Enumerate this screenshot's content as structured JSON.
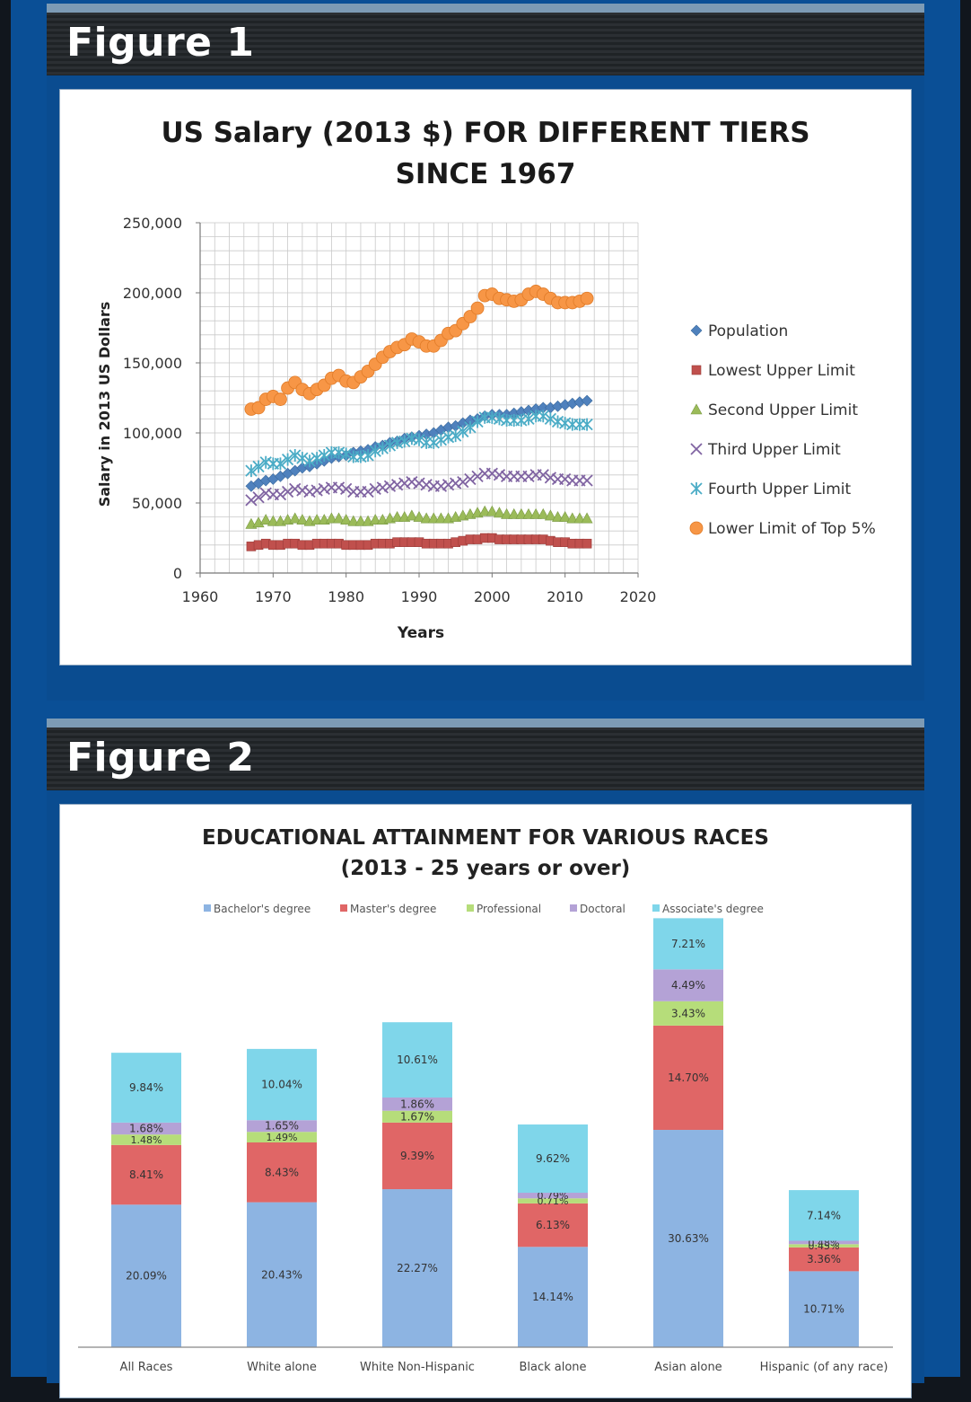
{
  "panels": [
    {
      "title": "Figure 1"
    },
    {
      "title": "Figure 2"
    }
  ],
  "chart_data": [
    {
      "type": "scatter",
      "title": "US Salary (2013 $) FOR DIFFERENT TIERS",
      "subtitle": "SINCE 1967",
      "xlabel": "Years",
      "ylabel": "Salary in 2013 US Dollars",
      "xlim": [
        1960,
        2020
      ],
      "ylim": [
        0,
        250000
      ],
      "xticks": [
        1960,
        1970,
        1980,
        1990,
        2000,
        2010,
        2020
      ],
      "yticks": [
        0,
        50000,
        100000,
        150000,
        200000,
        250000
      ],
      "xtick_labels": [
        "1960",
        "1970",
        "1980",
        "1990",
        "2000",
        "2010",
        "2020"
      ],
      "ytick_labels": [
        "0",
        "50,000",
        "100,000",
        "150,000",
        "200,000",
        "250,000"
      ],
      "grid": true,
      "legend_position": "right",
      "x": [
        1967,
        1968,
        1969,
        1970,
        1971,
        1972,
        1973,
        1974,
        1975,
        1976,
        1977,
        1978,
        1979,
        1980,
        1981,
        1982,
        1983,
        1984,
        1985,
        1986,
        1987,
        1988,
        1989,
        1990,
        1991,
        1992,
        1993,
        1994,
        1995,
        1996,
        1997,
        1998,
        1999,
        2000,
        2001,
        2002,
        2003,
        2004,
        2005,
        2006,
        2007,
        2008,
        2009,
        2010,
        2011,
        2012,
        2013
      ],
      "series": [
        {
          "name": "Population",
          "marker": "diamond",
          "color": "#4f81bd",
          "values": [
            62000,
            64000,
            66000,
            67000,
            69000,
            71000,
            73000,
            75000,
            76000,
            78000,
            80000,
            82000,
            83000,
            84000,
            86000,
            87000,
            88000,
            90000,
            91000,
            93000,
            94000,
            96000,
            97000,
            98000,
            99000,
            100000,
            102000,
            104000,
            105000,
            107000,
            109000,
            110000,
            112000,
            113000,
            113000,
            113000,
            114000,
            115000,
            116000,
            117000,
            118000,
            118000,
            119000,
            120000,
            121000,
            122000,
            123000
          ]
        },
        {
          "name": "Lowest Upper Limit",
          "marker": "square",
          "color": "#c0504d",
          "values": [
            19000,
            20000,
            21000,
            20000,
            20000,
            21000,
            21000,
            20000,
            20000,
            21000,
            21000,
            21000,
            21000,
            20000,
            20000,
            20000,
            20000,
            21000,
            21000,
            21000,
            22000,
            22000,
            22000,
            22000,
            21000,
            21000,
            21000,
            21000,
            22000,
            23000,
            24000,
            24000,
            25000,
            25000,
            24000,
            24000,
            24000,
            24000,
            24000,
            24000,
            24000,
            23000,
            22000,
            22000,
            21000,
            21000,
            21000
          ]
        },
        {
          "name": "Second Upper Limit",
          "marker": "triangle",
          "color": "#9bbb59",
          "values": [
            35000,
            36000,
            38000,
            37000,
            37000,
            38000,
            39000,
            38000,
            37000,
            38000,
            38000,
            39000,
            39000,
            38000,
            37000,
            37000,
            37000,
            38000,
            38000,
            39000,
            40000,
            40000,
            41000,
            40000,
            39000,
            39000,
            39000,
            39000,
            40000,
            41000,
            42000,
            43000,
            44000,
            44000,
            43000,
            42000,
            42000,
            42000,
            42000,
            42000,
            42000,
            41000,
            40000,
            40000,
            39000,
            39000,
            39000
          ]
        },
        {
          "name": "Third Upper Limit",
          "marker": "x",
          "color": "#8064a2",
          "values": [
            52000,
            54000,
            57000,
            56000,
            56000,
            58000,
            60000,
            59000,
            58000,
            59000,
            60000,
            61000,
            61000,
            60000,
            58000,
            58000,
            58000,
            60000,
            61000,
            62000,
            63000,
            64000,
            65000,
            64000,
            63000,
            62000,
            62000,
            63000,
            64000,
            65000,
            67000,
            69000,
            71000,
            71000,
            70000,
            69000,
            69000,
            69000,
            69000,
            70000,
            70000,
            68000,
            67000,
            67000,
            66000,
            66000,
            66000
          ]
        },
        {
          "name": "Fourth Upper Limit",
          "marker": "star",
          "color": "#4bacc6",
          "values": [
            73000,
            76000,
            79000,
            78000,
            78000,
            81000,
            84000,
            82000,
            80000,
            82000,
            84000,
            86000,
            86000,
            85000,
            83000,
            83000,
            84000,
            87000,
            89000,
            91000,
            93000,
            94000,
            96000,
            95000,
            93000,
            93000,
            95000,
            97000,
            98000,
            101000,
            104000,
            108000,
            111000,
            111000,
            110000,
            109000,
            109000,
            109000,
            110000,
            112000,
            112000,
            110000,
            108000,
            107000,
            106000,
            106000,
            106000
          ]
        },
        {
          "name": "Lower Limit of Top 5%",
          "marker": "circle",
          "color": "#f79646",
          "values": [
            117000,
            118000,
            124000,
            126000,
            124000,
            132000,
            136000,
            131000,
            128000,
            131000,
            134000,
            139000,
            141000,
            137000,
            136000,
            140000,
            144000,
            149000,
            154000,
            158000,
            161000,
            163000,
            167000,
            165000,
            162000,
            162000,
            166000,
            171000,
            173000,
            178000,
            183000,
            189000,
            198000,
            199000,
            196000,
            195000,
            194000,
            195000,
            199000,
            201000,
            199000,
            196000,
            193000,
            193000,
            193000,
            194000,
            196000
          ]
        }
      ]
    },
    {
      "type": "bar",
      "stacked": true,
      "title": "EDUCATIONAL ATTAINMENT FOR VARIOUS RACES",
      "subtitle": "(2013 - 25 years or over)",
      "legend_position": "top",
      "ymax": 40,
      "categories": [
        "All Races",
        "White alone",
        "White Non-Hispanic",
        "Black alone",
        "Asian alone",
        "Hispanic (of any race)"
      ],
      "series": [
        {
          "name": "Bachelor's degree",
          "color": "#8db4e2",
          "values": [
            20.09,
            20.43,
            22.27,
            14.14,
            30.63,
            10.71
          ],
          "labels": [
            "20.09%",
            "20.43%",
            "22.27%",
            "14.14%",
            "30.63%",
            "10.71%"
          ]
        },
        {
          "name": "Master's degree",
          "color": "#e06666",
          "values": [
            8.41,
            8.43,
            9.39,
            6.13,
            14.7,
            3.36
          ],
          "labels": [
            "8.41%",
            "8.43%",
            "9.39%",
            "6.13%",
            "14.70%",
            "3.36%"
          ]
        },
        {
          "name": "Professional",
          "color": "#b6dd7a",
          "values": [
            1.48,
            1.49,
            1.67,
            0.71,
            3.43,
            0.45
          ],
          "labels": [
            "1.48%",
            "1.49%",
            "1.67%",
            "0.71%",
            "3.43%",
            "0.45%"
          ]
        },
        {
          "name": "Doctoral",
          "color": "#b4a2d6",
          "values": [
            1.68,
            1.65,
            1.86,
            0.79,
            4.49,
            0.48
          ],
          "labels": [
            "1.68%",
            "1.65%",
            "1.86%",
            "0.79%",
            "4.49%",
            "0.48%"
          ]
        },
        {
          "name": "Associate's degree",
          "color": "#7fd6ea",
          "values": [
            9.84,
            10.04,
            10.61,
            9.62,
            7.21,
            7.14
          ],
          "labels": [
            "9.84%",
            "10.04%",
            "10.61%",
            "9.62%",
            "7.21%",
            "7.14%"
          ]
        }
      ]
    }
  ]
}
